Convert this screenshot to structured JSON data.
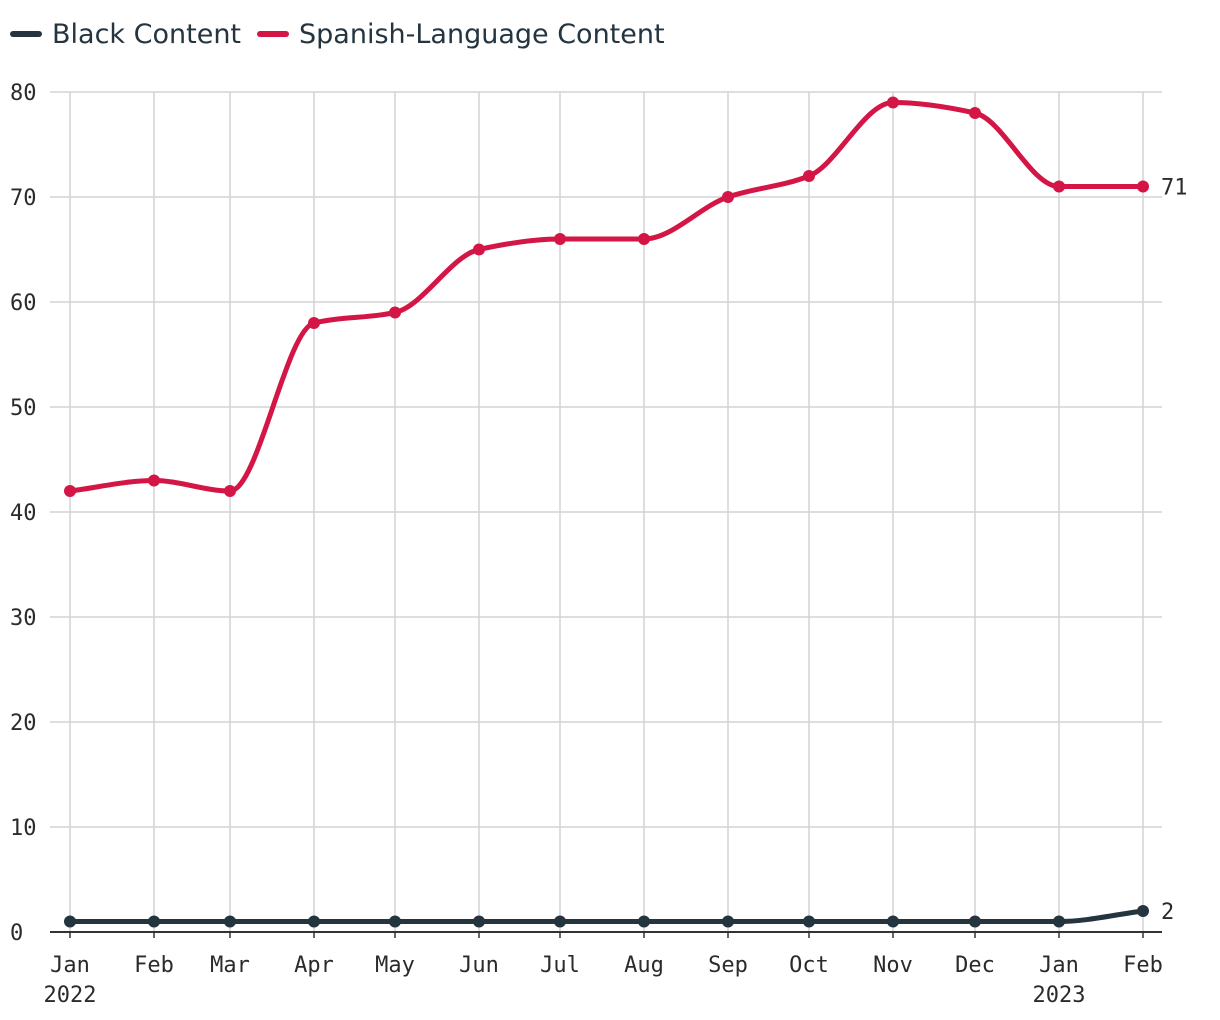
{
  "chart_data": {
    "type": "line",
    "categories": [
      "Jan",
      "Feb",
      "Mar",
      "Apr",
      "May",
      "Jun",
      "Jul",
      "Aug",
      "Sep",
      "Oct",
      "Nov",
      "Dec",
      "Jan",
      "Feb"
    ],
    "year_labels": [
      "2022",
      "",
      "",
      "",
      "",
      "",
      "",
      "",
      "",
      "",
      "",
      "",
      "2023",
      ""
    ],
    "series": [
      {
        "name": "Black Content",
        "color": "#243540",
        "values": [
          1,
          1,
          1,
          1,
          1,
          1,
          1,
          1,
          1,
          1,
          1,
          1,
          1,
          2
        ],
        "end_label": "2"
      },
      {
        "name": "Spanish-Language Content",
        "color": "#d31645",
        "values": [
          42,
          43,
          42,
          58,
          59,
          65,
          66,
          66,
          70,
          72,
          79,
          78,
          71,
          71
        ],
        "end_label": "71"
      }
    ],
    "ylim": [
      0,
      80
    ],
    "yticks": [
      "0",
      "10",
      "20",
      "30",
      "40",
      "50",
      "60",
      "70",
      "80"
    ],
    "grid": true,
    "legend_position": "top-left"
  }
}
